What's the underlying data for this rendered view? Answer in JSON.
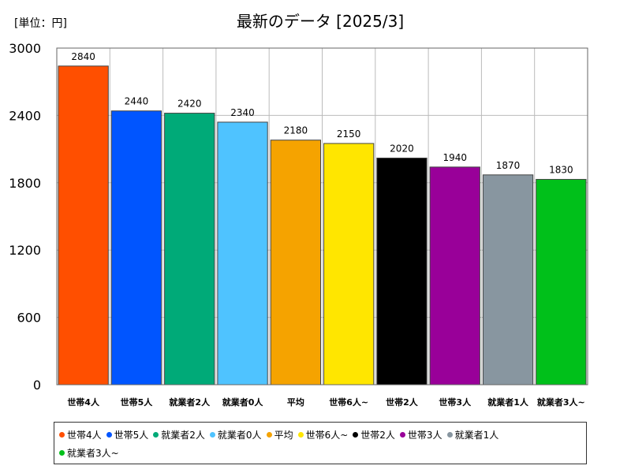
{
  "chart_data": {
    "type": "bar",
    "title": "最新のデータ [2025/3]",
    "unit_label": "[単位：円]",
    "categories": [
      "世帯4人",
      "世帯5人",
      "就業者2人",
      "就業者0人",
      "平均",
      "世帯6人~",
      "世帯2人",
      "世帯3人",
      "就業者1人",
      "就業者3人~"
    ],
    "values": [
      2840,
      2440,
      2420,
      2340,
      2180,
      2150,
      2020,
      1940,
      1870,
      1830
    ],
    "colors": [
      "#ff4f00",
      "#0055ff",
      "#00aa78",
      "#4fc3ff",
      "#f5a300",
      "#ffe600",
      "#000000",
      "#990099",
      "#8896a0",
      "#00c01a"
    ],
    "ylim": [
      0,
      3000
    ],
    "yticks": [
      0,
      600,
      1200,
      1800,
      2400,
      3000
    ],
    "grid": true,
    "legend_position": "bottom"
  }
}
